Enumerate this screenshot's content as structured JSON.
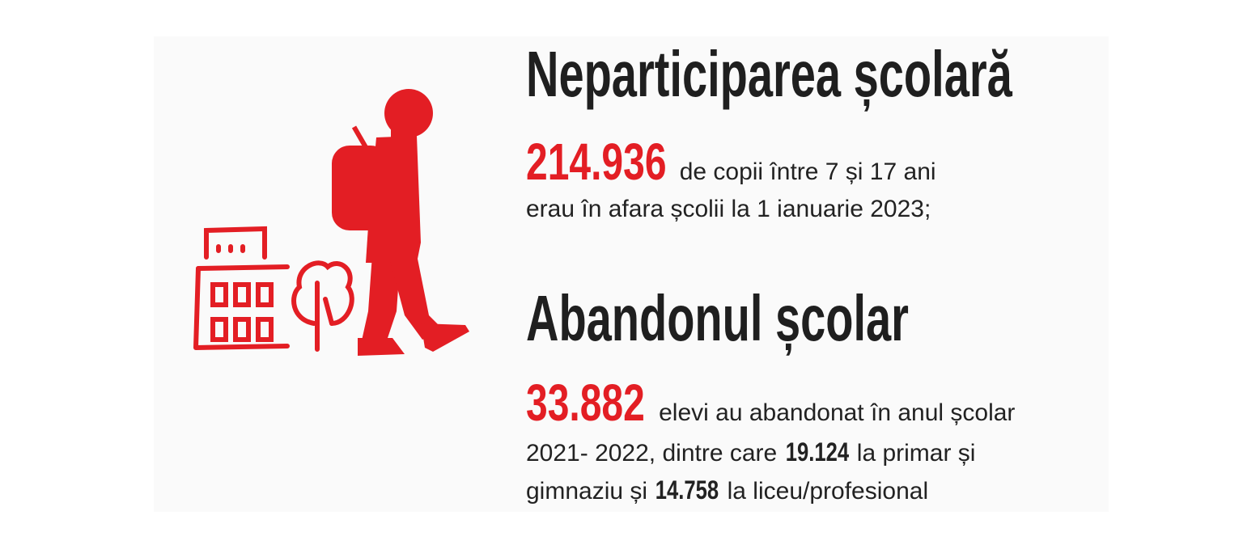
{
  "sections": [
    {
      "title": "Neparticiparea școlară",
      "number": "214.936",
      "lines": [
        "de copii între 7 și 17 ani",
        "erau în afara școlii la 1 ianuarie 2023;"
      ]
    },
    {
      "title": "Abandonul școlar",
      "number": "33.882",
      "lines": [
        "elevi au abandonat în anul școlar",
        "2021- 2022, dintre care",
        "la primar și",
        "gimnaziu și",
        "la liceu/profesional"
      ],
      "primary": "19.124",
      "high_school": "14.758"
    }
  ]
}
